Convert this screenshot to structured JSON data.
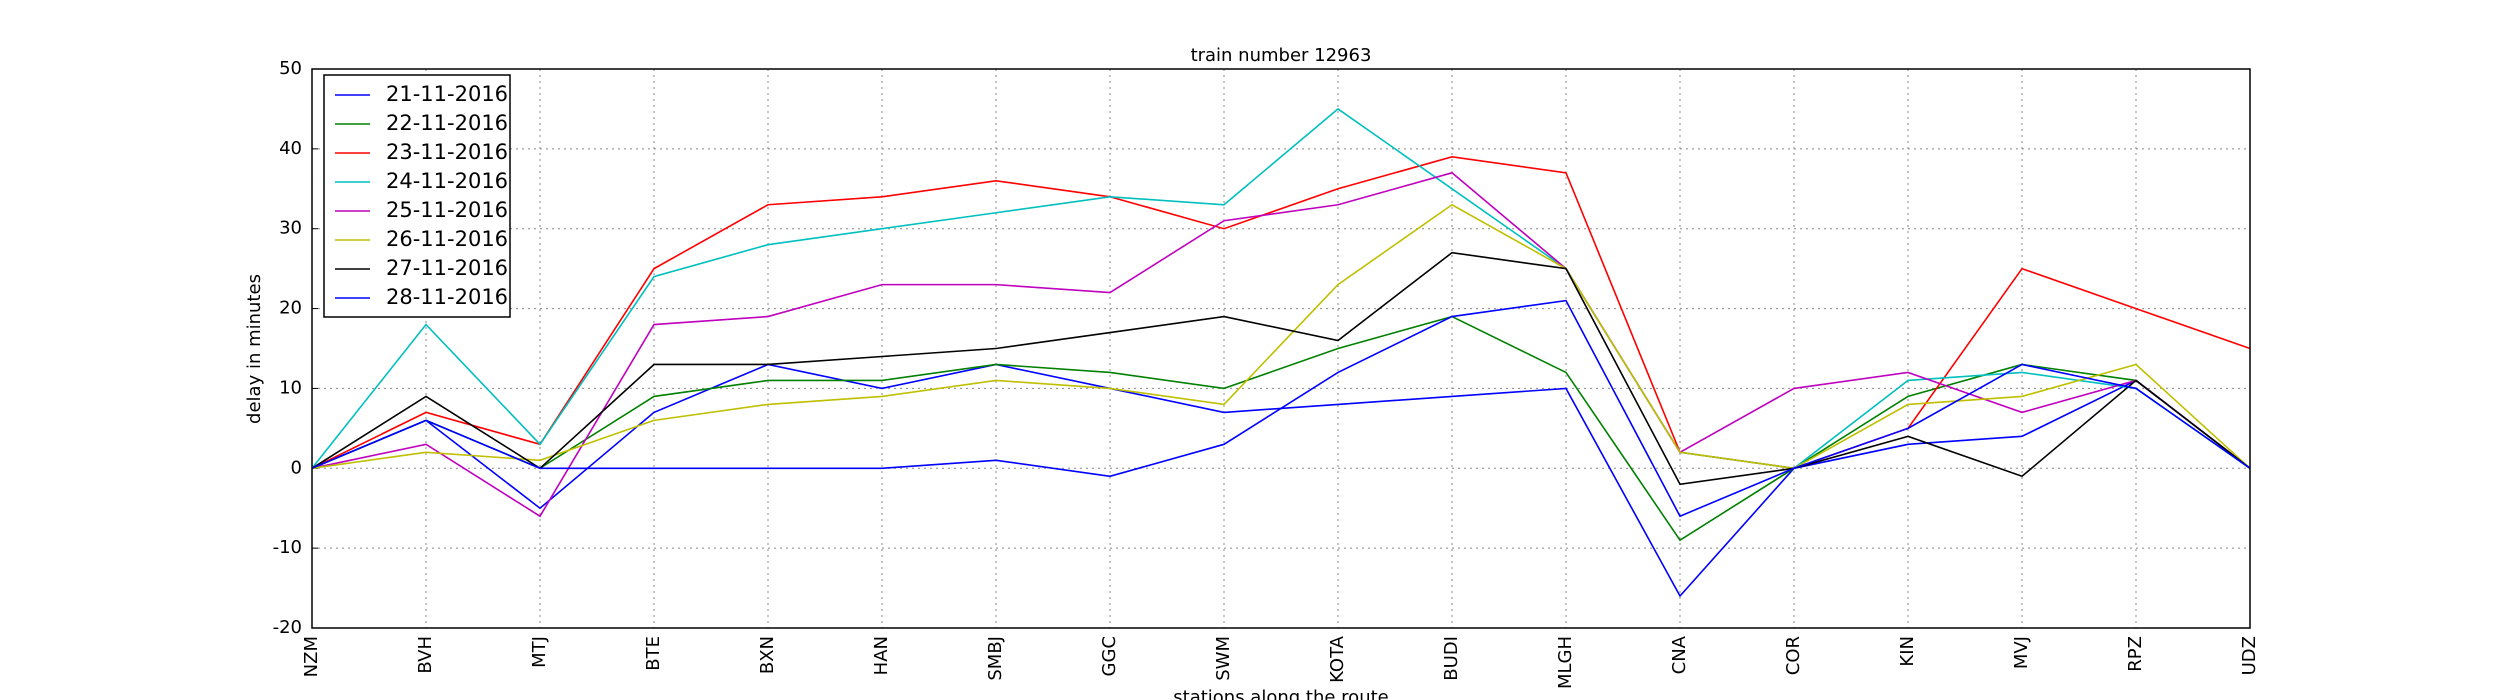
{
  "chart_data": {
    "type": "line",
    "title": "train number 12963",
    "x_label": "stations along the route",
    "y_label": "delay in minutes",
    "categories": [
      "NZM",
      "BVH",
      "MTJ",
      "BTE",
      "BXN",
      "HAN",
      "SMBJ",
      "GGC",
      "SWM",
      "KOTA",
      "BUDI",
      "MLGH",
      "CNA",
      "COR",
      "KIN",
      "MVJ",
      "RPZ",
      "UDZ"
    ],
    "series": [
      {
        "name": "21-11-2016",
        "color": "#0000ff",
        "values": [
          0,
          6,
          -5,
          7,
          13,
          10,
          13,
          10,
          7,
          8,
          9,
          10,
          -16,
          0,
          3,
          4,
          11,
          0
        ]
      },
      {
        "name": "22-11-2016",
        "color": "#008000",
        "values": [
          0,
          6,
          0,
          9,
          11,
          11,
          13,
          12,
          10,
          15,
          19,
          12,
          -9,
          0,
          9,
          13,
          11,
          0
        ]
      },
      {
        "name": "23-11-2016",
        "color": "#ff0000",
        "values": [
          0,
          7,
          3,
          25,
          33,
          34,
          36,
          34,
          30,
          35,
          39,
          37,
          2,
          0,
          5,
          25,
          20,
          15
        ]
      },
      {
        "name": "24-11-2016",
        "color": "#00bfbf",
        "values": [
          0,
          18,
          3,
          24,
          28,
          30,
          32,
          34,
          33,
          45,
          35,
          25,
          2,
          0,
          11,
          12,
          10,
          0
        ]
      },
      {
        "name": "25-11-2016",
        "color": "#bf00bf",
        "values": [
          0,
          3,
          -6,
          18,
          19,
          23,
          23,
          22,
          31,
          33,
          37,
          25,
          2,
          10,
          12,
          7,
          11,
          0
        ]
      },
      {
        "name": "26-11-2016",
        "color": "#bfbf00",
        "values": [
          0,
          2,
          1,
          6,
          8,
          9,
          11,
          10,
          8,
          23,
          33,
          25,
          2,
          0,
          8,
          9,
          13,
          0
        ]
      },
      {
        "name": "27-11-2016",
        "color": "#000000",
        "values": [
          0,
          9,
          0,
          13,
          13,
          14,
          15,
          17,
          19,
          16,
          27,
          25,
          -2,
          0,
          4,
          -1,
          11,
          0
        ]
      },
      {
        "name": "28-11-2016",
        "color": "#0000ff",
        "values": [
          0,
          6,
          0,
          0,
          0,
          0,
          1,
          -1,
          3,
          12,
          19,
          21,
          -6,
          0,
          5,
          13,
          10,
          0
        ]
      }
    ],
    "ylim": [
      -20,
      50
    ],
    "yticks": [
      -20,
      -10,
      0,
      10,
      20,
      30,
      40,
      50
    ],
    "grid": true,
    "legend": "upper left"
  }
}
